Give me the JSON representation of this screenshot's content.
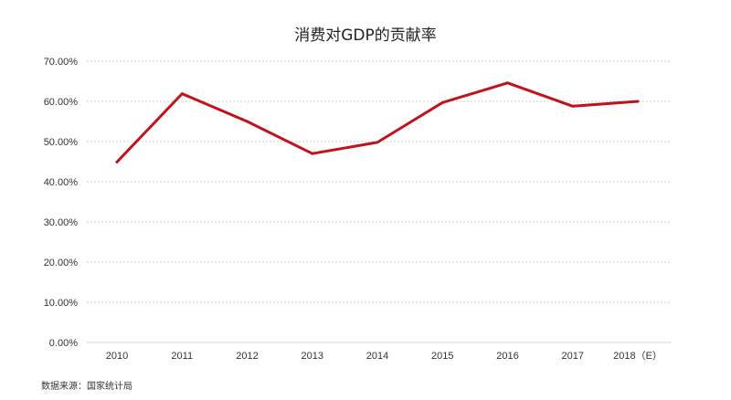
{
  "chart_data": {
    "type": "line",
    "title": "消费对GDP的贡献率",
    "xlabel": "",
    "ylabel": "",
    "categories": [
      "2010",
      "2011",
      "2012",
      "2013",
      "2014",
      "2015",
      "2016",
      "2017",
      "2018（E）"
    ],
    "series": [
      {
        "values": [
          44.9,
          61.9,
          55.0,
          47.0,
          49.8,
          59.7,
          64.6,
          58.8,
          60.0
        ],
        "color": "#c0141c"
      }
    ],
    "ylim": [
      0,
      70
    ],
    "yticks": [
      0,
      10,
      20,
      30,
      40,
      50,
      60,
      70
    ],
    "ytick_labels": [
      "0.00%",
      "10.00%",
      "20.00%",
      "30.00%",
      "40.00%",
      "50.00%",
      "60.00%",
      "70.00%"
    ],
    "grid": true,
    "legend": "none"
  },
  "source": "数据来源：国家统计局",
  "colors": {
    "line": "#c0141c",
    "grid": "#cfcfcf",
    "text": "#333333"
  }
}
